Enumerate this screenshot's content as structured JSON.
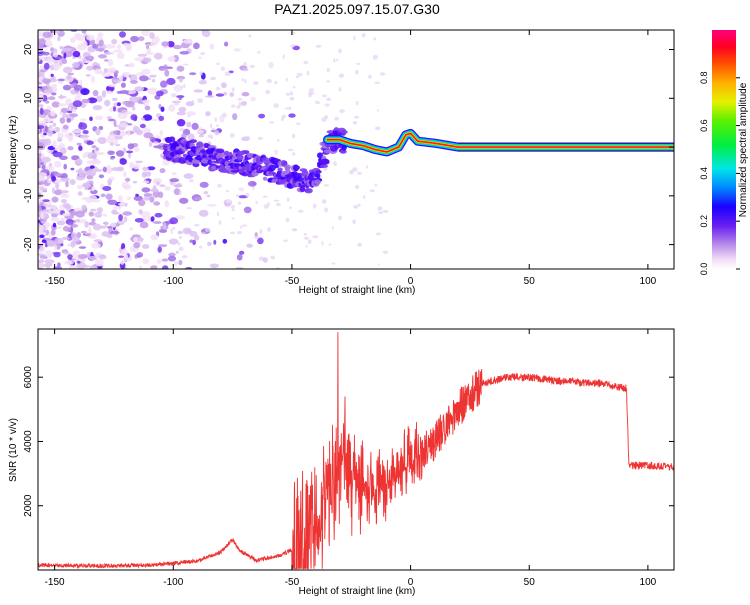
{
  "title": "PAZ1.2025.097.15.07.G30",
  "chart_data": [
    {
      "type": "heatmap",
      "title": "PAZ1.2025.097.15.07.G30",
      "xlabel": "Height of straight line (km)",
      "ylabel": "Frequency (Hz)",
      "xlim": [
        -157,
        111
      ],
      "ylim": [
        -25,
        24
      ],
      "xticks": [
        -150,
        -100,
        -50,
        0,
        50,
        100
      ],
      "yticks": [
        -20,
        -10,
        0,
        10,
        20
      ],
      "ridge": [
        {
          "x": -100,
          "y": -0.5
        },
        {
          "x": -95,
          "y": -1.0
        },
        {
          "x": -90,
          "y": -1.5
        },
        {
          "x": -85,
          "y": -2.0
        },
        {
          "x": -80,
          "y": -2.5
        },
        {
          "x": -75,
          "y": -3.0
        },
        {
          "x": -70,
          "y": -3.5
        },
        {
          "x": -65,
          "y": -4.0
        },
        {
          "x": -60,
          "y": -4.5
        },
        {
          "x": -55,
          "y": -5.2
        },
        {
          "x": -50,
          "y": -6.0
        },
        {
          "x": -45,
          "y": -6.8
        },
        {
          "x": -40,
          "y": -7.0
        },
        {
          "x": -35,
          "y": 1.5
        },
        {
          "x": -30,
          "y": 1.5
        },
        {
          "x": -25,
          "y": 0.7
        },
        {
          "x": -20,
          "y": 0.3
        },
        {
          "x": -15,
          "y": -0.5
        },
        {
          "x": -10,
          "y": -1.0
        },
        {
          "x": -5,
          "y": 0.0
        },
        {
          "x": -2,
          "y": 2.5
        },
        {
          "x": 0,
          "y": 2.8
        },
        {
          "x": 3,
          "y": 1.2
        },
        {
          "x": 10,
          "y": 0.8
        },
        {
          "x": 20,
          "y": 0.0
        },
        {
          "x": 110,
          "y": 0.0
        }
      ],
      "colorbar": {
        "label": "Normalized spectral amplitude",
        "ticks": [
          "0.0",
          "0.2",
          "0.4",
          "0.6",
          "0.8"
        ],
        "range": [
          0,
          1
        ]
      }
    },
    {
      "type": "line",
      "xlabel": "Height of straight line (km)",
      "ylabel": "SNR (10 * v/v)",
      "xlim": [
        -157,
        111
      ],
      "ylim": [
        0,
        7500
      ],
      "xticks": [
        -150,
        -100,
        -50,
        0,
        50,
        100
      ],
      "yticks": [
        2000,
        4000,
        6000
      ],
      "color": "#ee3333",
      "envelope": [
        {
          "x": -157,
          "y": 150
        },
        {
          "x": -130,
          "y": 130
        },
        {
          "x": -110,
          "y": 150
        },
        {
          "x": -100,
          "y": 200
        },
        {
          "x": -90,
          "y": 280
        },
        {
          "x": -80,
          "y": 550
        },
        {
          "x": -75,
          "y": 950
        },
        {
          "x": -72,
          "y": 600
        },
        {
          "x": -65,
          "y": 300
        },
        {
          "x": -55,
          "y": 450
        },
        {
          "x": -48,
          "y": 700
        },
        {
          "x": -43,
          "y": 1200
        },
        {
          "x": -38,
          "y": 1700
        },
        {
          "x": -33,
          "y": 2800
        },
        {
          "x": -28,
          "y": 3500
        },
        {
          "x": -22,
          "y": 2800
        },
        {
          "x": -15,
          "y": 2500
        },
        {
          "x": -5,
          "y": 3000
        },
        {
          "x": 2,
          "y": 3500
        },
        {
          "x": 10,
          "y": 4000
        },
        {
          "x": 20,
          "y": 5000
        },
        {
          "x": 30,
          "y": 5800
        },
        {
          "x": 40,
          "y": 6000
        },
        {
          "x": 50,
          "y": 6000
        },
        {
          "x": 60,
          "y": 5900
        },
        {
          "x": 80,
          "y": 5800
        },
        {
          "x": 91,
          "y": 5650
        },
        {
          "x": 92,
          "y": 3250
        },
        {
          "x": 100,
          "y": 3250
        },
        {
          "x": 111,
          "y": 3200
        }
      ]
    }
  ]
}
